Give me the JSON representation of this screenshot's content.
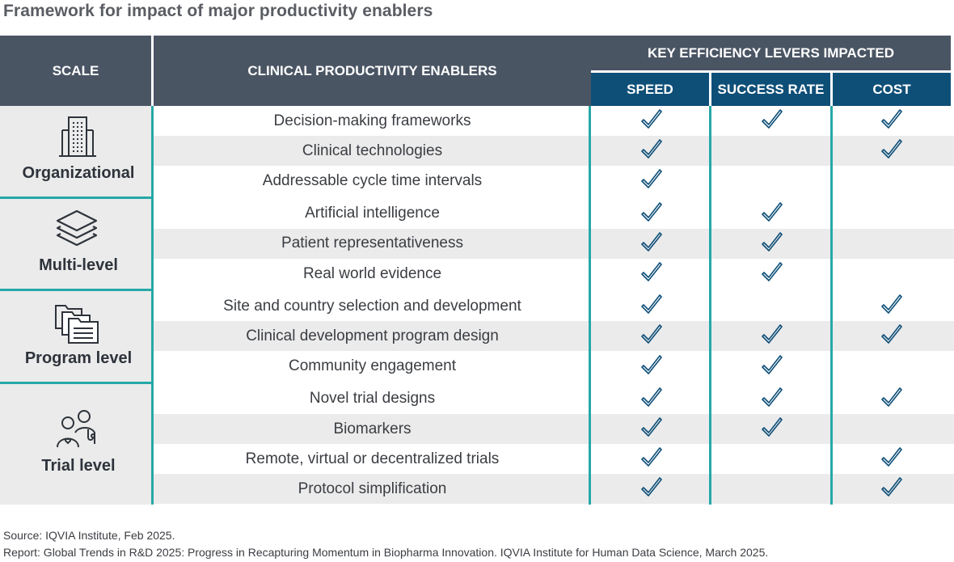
{
  "title": "Framework for impact of major productivity enablers",
  "headers": {
    "scale": "SCALE",
    "enablers": "CLINICAL PRODUCTIVITY ENABLERS",
    "levers": "KEY EFFICIENCY LEVERS IMPACTED",
    "speed": "SPEED",
    "success_rate": "SUCCESS RATE",
    "cost": "COST"
  },
  "scales": [
    {
      "label": "Organizational",
      "icon": "building-icon"
    },
    {
      "label": "Multi-level",
      "icon": "layers-icon"
    },
    {
      "label": "Program level",
      "icon": "folders-icon"
    },
    {
      "label": "Trial level",
      "icon": "people-icon"
    }
  ],
  "rows": [
    {
      "enabler": "Decision-making frameworks",
      "speed": true,
      "success_rate": true,
      "cost": true
    },
    {
      "enabler": "Clinical technologies",
      "speed": true,
      "success_rate": false,
      "cost": true
    },
    {
      "enabler": "Addressable cycle time intervals",
      "speed": true,
      "success_rate": false,
      "cost": false
    },
    {
      "enabler": "Artificial intelligence",
      "speed": true,
      "success_rate": true,
      "cost": false
    },
    {
      "enabler": "Patient representativeness",
      "speed": true,
      "success_rate": true,
      "cost": false
    },
    {
      "enabler": "Real world evidence",
      "speed": true,
      "success_rate": true,
      "cost": false
    },
    {
      "enabler": "Site and country selection and development",
      "speed": true,
      "success_rate": false,
      "cost": true
    },
    {
      "enabler": "Clinical development program design",
      "speed": true,
      "success_rate": true,
      "cost": true
    },
    {
      "enabler": "Community engagement",
      "speed": true,
      "success_rate": true,
      "cost": false
    },
    {
      "enabler": "Novel trial designs",
      "speed": true,
      "success_rate": true,
      "cost": true
    },
    {
      "enabler": "Biomarkers",
      "speed": true,
      "success_rate": true,
      "cost": false
    },
    {
      "enabler": "Remote, virtual or decentralized trials",
      "speed": true,
      "success_rate": false,
      "cost": true
    },
    {
      "enabler": "Protocol simplification",
      "speed": true,
      "success_rate": false,
      "cost": true
    }
  ],
  "colors": {
    "header_dark": "#4a5564",
    "header_blue": "#0e4f78",
    "accent_teal": "#26a8a8",
    "band_gray": "#ebebeb"
  },
  "footer": {
    "source": "Source: IQVIA Institute, Feb 2025.",
    "report": "Report: Global Trends in R&D 2025: Progress in Recapturing Momentum in Biopharma Innovation. IQVIA Institute for Human Data Science, March 2025."
  }
}
